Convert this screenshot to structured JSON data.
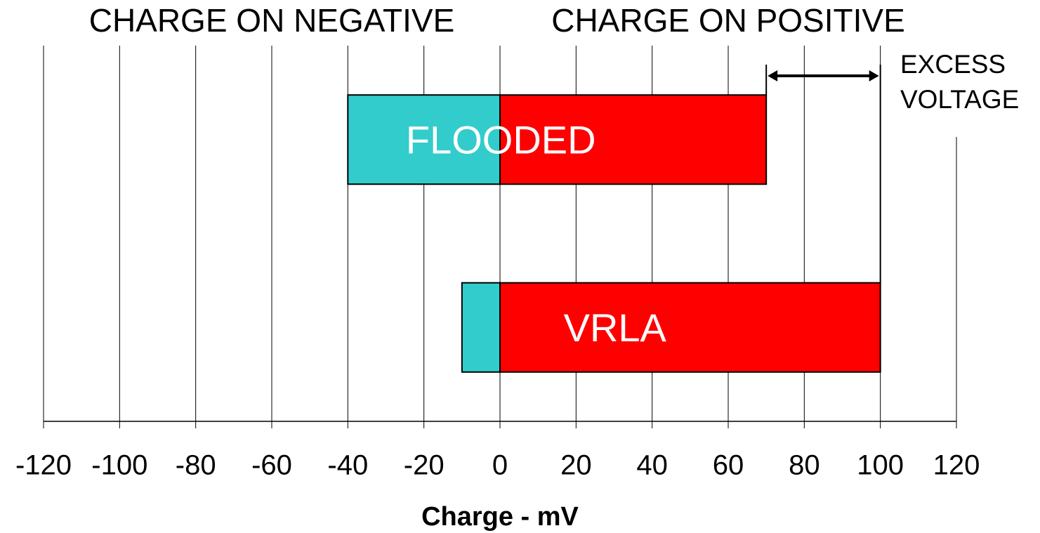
{
  "chart_data": {
    "type": "diverging-bar",
    "categories": [
      "FLOODED",
      "VRLA"
    ],
    "series": [
      {
        "name": "CHARGE ON NEGATIVE",
        "color": "#33cccc",
        "values": [
          -40,
          -10
        ]
      },
      {
        "name": "CHARGE ON POSITIVE",
        "color": "#ff0000",
        "values": [
          70,
          100
        ]
      }
    ],
    "annotation": [
      "EXCESS",
      "VOLTAGE"
    ],
    "xlabel": "Charge - mV",
    "xlim": [
      -120,
      120
    ],
    "xticks": [
      -120,
      -100,
      -80,
      -60,
      -40,
      -20,
      0,
      20,
      40,
      60,
      80,
      100,
      120
    ],
    "grid": true
  }
}
